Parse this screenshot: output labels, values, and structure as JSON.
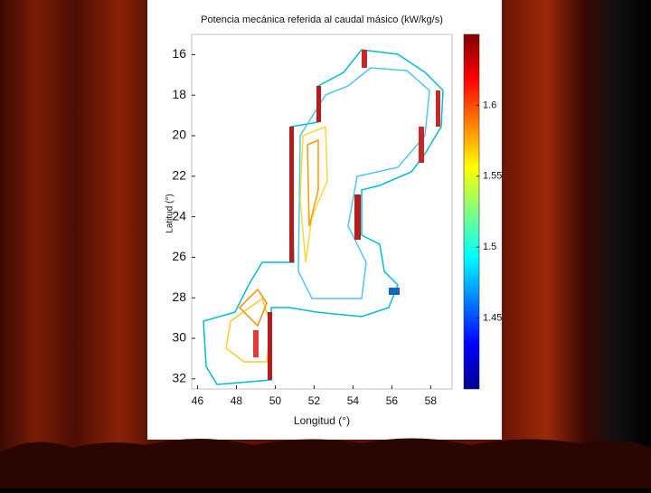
{
  "chart_data": {
    "type": "contour",
    "title": "Potencia mecánica referida al caudal másico (kW/kg/s)",
    "x_label": "Longitud (°)",
    "y_label": "Latitud (°)",
    "xlim": [
      45.7,
      59.1
    ],
    "xticks": [
      46,
      48,
      50,
      52,
      54,
      56,
      58
    ],
    "ylim": [
      15,
      32.5
    ],
    "yticks": [
      16,
      18,
      20,
      22,
      24,
      26,
      28,
      30,
      32
    ],
    "y_inverted": true,
    "colormap": "jet",
    "colorbar": {
      "lim": [
        1.4,
        1.65
      ],
      "ticks": [
        1.45,
        1.5,
        1.55,
        1.6
      ]
    }
  }
}
